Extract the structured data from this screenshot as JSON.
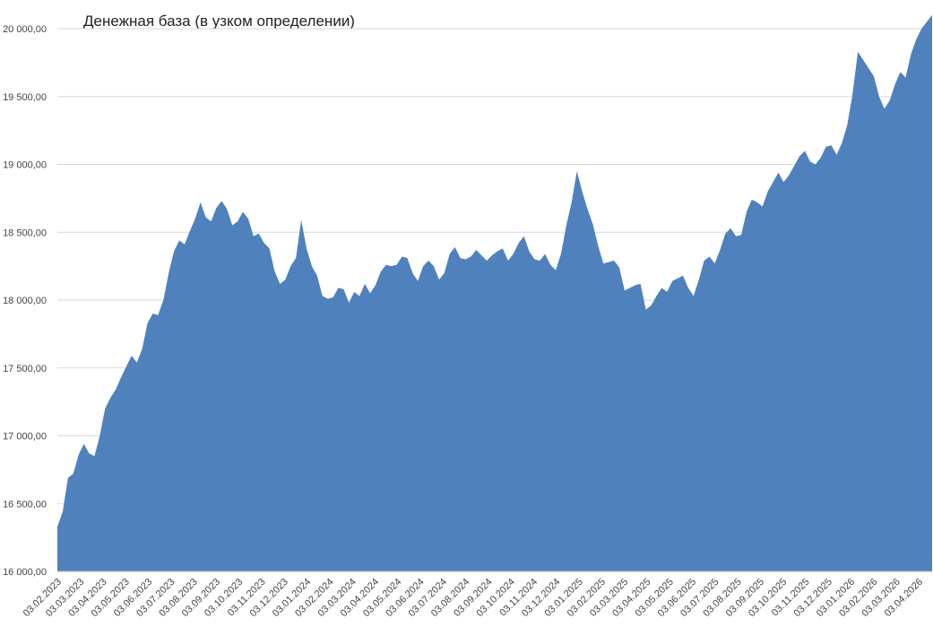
{
  "chart_data": {
    "type": "area",
    "title": "Денежная база (в узком определении)",
    "xlabel": "",
    "ylabel": "",
    "ylim": [
      16000,
      20000
    ],
    "grid": true,
    "color": "#4f81bd",
    "yticks": [
      16000,
      16500,
      17000,
      17500,
      18000,
      18500,
      19000,
      19500,
      20000
    ],
    "ytick_labels": [
      "16 000,00",
      "16 500,00",
      "17 000,00",
      "17 500,00",
      "18 000,00",
      "18 500,00",
      "19 000,00",
      "19 500,00",
      "20 000,00"
    ],
    "xtick_labels": [
      "03.02.2023",
      "03.03.2023",
      "03.04.2023",
      "03.05.2023",
      "03.06.2023",
      "03.07.2023",
      "03.08.2023",
      "03.09.2023",
      "03.10.2023",
      "03.11.2023",
      "03.12.2023",
      "03.01.2024",
      "03.02.2024",
      "03.03.2024",
      "03.04.2024",
      "03.05.2024",
      "03.06.2024",
      "03.07.2024",
      "03.08.2024",
      "03.09.2024",
      "03.10.2024",
      "03.11.2024",
      "03.12.2024",
      "03.01.2025",
      "03.02.2025",
      "03.03.2025",
      "03.04.2025",
      "03.05.2025",
      "03.06.2025",
      "03.07.2025",
      "03.08.2025",
      "03.09.2025",
      "03.10.2025",
      "03.11.2025",
      "03.12.2025",
      "03.01.2026",
      "03.02.2026",
      "03.03.2026",
      "03.04.2026"
    ],
    "values": [
      16330,
      16440,
      16690,
      16720,
      16860,
      16940,
      16870,
      16850,
      17000,
      17200,
      17280,
      17340,
      17430,
      17510,
      17590,
      17540,
      17640,
      17830,
      17900,
      17890,
      18000,
      18200,
      18360,
      18440,
      18410,
      18510,
      18600,
      18720,
      18610,
      18580,
      18680,
      18730,
      18670,
      18550,
      18580,
      18650,
      18600,
      18470,
      18490,
      18420,
      18380,
      18210,
      18120,
      18150,
      18250,
      18310,
      18590,
      18380,
      18250,
      18180,
      18030,
      18010,
      18020,
      18090,
      18080,
      17980,
      18060,
      18030,
      18120,
      18050,
      18110,
      18210,
      18260,
      18250,
      18260,
      18320,
      18310,
      18200,
      18140,
      18250,
      18290,
      18250,
      18150,
      18200,
      18340,
      18390,
      18310,
      18300,
      18320,
      18370,
      18330,
      18290,
      18330,
      18360,
      18380,
      18290,
      18340,
      18420,
      18470,
      18360,
      18300,
      18290,
      18340,
      18260,
      18220,
      18340,
      18550,
      18720,
      18950,
      18800,
      18670,
      18560,
      18400,
      18270,
      18280,
      18290,
      18240,
      18070,
      18090,
      18110,
      18120,
      17930,
      17960,
      18030,
      18090,
      18060,
      18140,
      18160,
      18180,
      18090,
      18030,
      18150,
      18290,
      18320,
      18270,
      18370,
      18490,
      18530,
      18470,
      18480,
      18650,
      18740,
      18720,
      18690,
      18800,
      18870,
      18940,
      18870,
      18920,
      18990,
      19060,
      19100,
      19020,
      19000,
      19050,
      19130,
      19140,
      19070,
      19160,
      19290,
      19520,
      19830,
      19770,
      19710,
      19650,
      19500,
      19410,
      19470,
      19590,
      19680,
      19640,
      19810,
      19920,
      20000,
      20050,
      20100
    ]
  }
}
